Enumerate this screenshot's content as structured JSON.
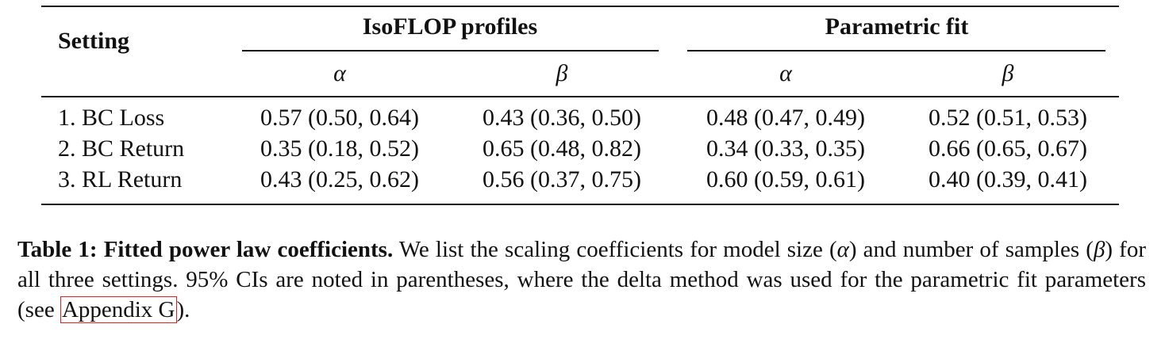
{
  "table": {
    "header": {
      "setting": "Setting",
      "groups": [
        "IsoFLOP profiles",
        "Parametric fit"
      ],
      "subheaders": [
        "α",
        "β",
        "α",
        "β"
      ]
    },
    "rows": [
      [
        "1. BC Loss",
        "0.57 (0.50, 0.64)",
        "0.43 (0.36, 0.50)",
        "0.48 (0.47, 0.49)",
        "0.52 (0.51, 0.53)"
      ],
      [
        "2. BC Return",
        "0.35 (0.18, 0.52)",
        "0.65 (0.48, 0.82)",
        "0.34 (0.33, 0.35)",
        "0.66 (0.65, 0.67)"
      ],
      [
        "3. RL Return",
        "0.43 (0.25, 0.62)",
        "0.56 (0.37, 0.75)",
        "0.60 (0.59, 0.61)",
        "0.40 (0.39, 0.41)"
      ]
    ]
  },
  "caption": {
    "label": "Table 1:",
    "title": "Fitted power law coefficients.",
    "parts": [
      " We list the scaling coefficients for model size (",
      "α",
      ") and number of samples (",
      "β",
      ") for all three settings. 95% CIs are noted in parentheses, where the delta method was used for the parametric fit parameters (see ",
      "Appendix G",
      ")."
    ]
  }
}
